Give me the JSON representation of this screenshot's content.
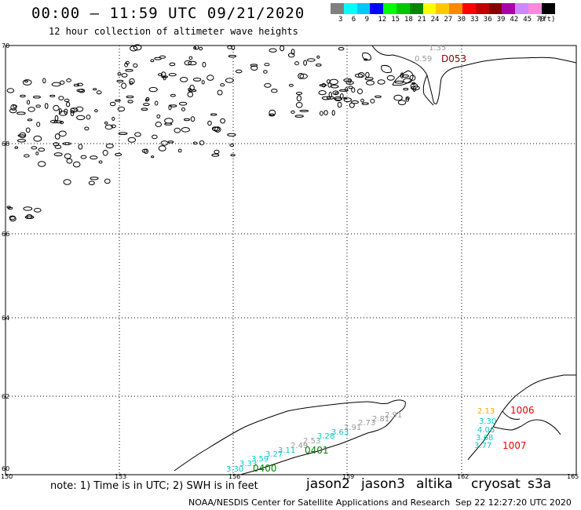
{
  "header": {
    "title": "00:00 – 11:59 UTC 09/21/2020",
    "subtitle": "12 hour collection of altimeter wave heights"
  },
  "legend": {
    "colors": [
      "#808080",
      "#00ffff",
      "#00c8ff",
      "#0000ff",
      "#00ff00",
      "#00c800",
      "#008800",
      "#ffff00",
      "#ffc800",
      "#ff8800",
      "#ff0000",
      "#c00000",
      "#880000",
      "#aa00aa",
      "#cc88ff",
      "#ff88dd",
      "#000000"
    ],
    "labels": [
      "3",
      "6",
      "9",
      "12",
      "15",
      "18",
      "21",
      "24",
      "27",
      "30",
      "33",
      "36",
      "39",
      "42",
      "45",
      "70",
      "(ft)"
    ]
  },
  "axes": {
    "lat_labels": [
      "70",
      "68",
      "66",
      "64",
      "62",
      "60"
    ],
    "lon_labels": [
      "150",
      "153",
      "156",
      "159",
      "162",
      "165"
    ]
  },
  "tracks": {
    "top": {
      "label": "D053",
      "values": [
        "1.35",
        "0.59"
      ]
    },
    "bottom_left": {
      "labels": [
        "0400",
        "0401"
      ],
      "values": [
        "3.30",
        "3.33",
        "3.59",
        "3.27",
        "3.11",
        "2.49",
        "2.53",
        "3.28",
        "3.63",
        "2.91",
        "2.73",
        "2.81",
        "2.91"
      ]
    },
    "bottom_right": {
      "labels": [
        "1006",
        "1007"
      ],
      "values": [
        "2.13",
        "3.30",
        "4.06",
        "3.68",
        "3.77"
      ]
    }
  },
  "footer": {
    "note": "note: 1) Time is in UTC; 2) SWH is in feet",
    "satellites": [
      {
        "name": "jason2",
        "color": "#0000cc"
      },
      {
        "name": "jason3",
        "color": "#008800"
      },
      {
        "name": "altika",
        "color": "#ff9900"
      },
      {
        "name": "cryosat",
        "color": "#ee0000"
      },
      {
        "name": "s3a",
        "color": "#cc0000"
      }
    ],
    "credit": "NOAA/NESDIS Center for Satellite Applications and Research",
    "timestamp": "Sep 22 12:27:20 UTC 2020"
  }
}
